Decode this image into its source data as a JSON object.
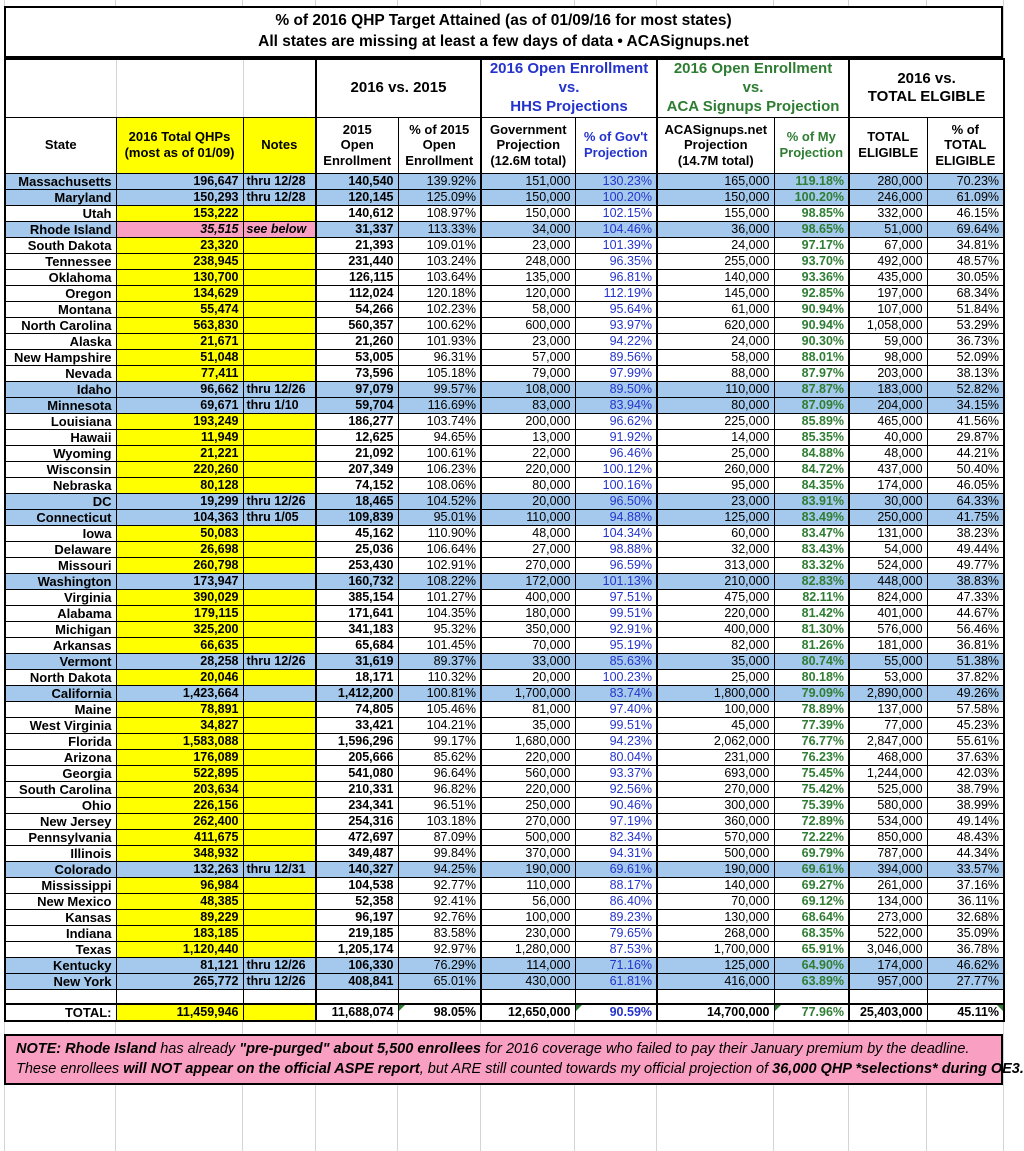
{
  "title": {
    "line1": "% of 2016 QHP Target Attained (as of 01/09/16 for most states)",
    "line2": "All states are missing at least a few days of data • ACASignups.net"
  },
  "group_headers": {
    "vs2015": "2016 vs. 2015",
    "hhs": "2016 Open Enrollment\nvs.\nHHS Projections",
    "aca": "2016 Open Enrollment\nvs.\nACA Signups Projection",
    "eligible": "2016 vs.\nTOTAL ELGIBLE"
  },
  "column_headers": {
    "state": "State",
    "qhps": "2016 Total QHPs\n(most as of 01/09)",
    "notes": "Notes",
    "oe2015": "2015\nOpen\nEnrollment",
    "pct2015": "% of 2015\nOpen\nEnrollment",
    "gov": "Government\nProjection\n(12.6M total)",
    "pctgov": "% of Gov't\nProjection",
    "aca": "ACASignups.net\nProjection\n(14.7M total)",
    "pctmy": "% of My\nProjection",
    "eligible": "TOTAL\nELIGIBLE",
    "pctelig": "% of\nTOTAL\nELIGIBLE"
  },
  "rows": [
    [
      "Massachusetts",
      "196,647",
      "thru 12/28",
      "140,540",
      "139.92%",
      "151,000",
      "130.23%",
      "165,000",
      "119.18%",
      "280,000",
      "70.23%",
      "blue"
    ],
    [
      "Maryland",
      "150,293",
      "thru 12/28",
      "120,145",
      "125.09%",
      "150,000",
      "100.20%",
      "150,000",
      "100.20%",
      "246,000",
      "61.09%",
      "blue"
    ],
    [
      "Utah",
      "153,222",
      "",
      "140,612",
      "108.97%",
      "150,000",
      "102.15%",
      "155,000",
      "98.85%",
      "332,000",
      "46.15%",
      "white"
    ],
    [
      "Rhode Island",
      "35,515",
      "see below",
      "31,337",
      "113.33%",
      "34,000",
      "104.46%",
      "36,000",
      "98.65%",
      "51,000",
      "69.64%",
      "ri"
    ],
    [
      "South Dakota",
      "23,320",
      "",
      "21,393",
      "109.01%",
      "23,000",
      "101.39%",
      "24,000",
      "97.17%",
      "67,000",
      "34.81%",
      "white"
    ],
    [
      "Tennessee",
      "238,945",
      "",
      "231,440",
      "103.24%",
      "248,000",
      "96.35%",
      "255,000",
      "93.70%",
      "492,000",
      "48.57%",
      "white"
    ],
    [
      "Oklahoma",
      "130,700",
      "",
      "126,115",
      "103.64%",
      "135,000",
      "96.81%",
      "140,000",
      "93.36%",
      "435,000",
      "30.05%",
      "white"
    ],
    [
      "Oregon",
      "134,629",
      "",
      "112,024",
      "120.18%",
      "120,000",
      "112.19%",
      "145,000",
      "92.85%",
      "197,000",
      "68.34%",
      "white"
    ],
    [
      "Montana",
      "55,474",
      "",
      "54,266",
      "102.23%",
      "58,000",
      "95.64%",
      "61,000",
      "90.94%",
      "107,000",
      "51.84%",
      "white"
    ],
    [
      "North Carolina",
      "563,830",
      "",
      "560,357",
      "100.62%",
      "600,000",
      "93.97%",
      "620,000",
      "90.94%",
      "1,058,000",
      "53.29%",
      "white"
    ],
    [
      "Alaska",
      "21,671",
      "",
      "21,260",
      "101.93%",
      "23,000",
      "94.22%",
      "24,000",
      "90.30%",
      "59,000",
      "36.73%",
      "white"
    ],
    [
      "New Hampshire",
      "51,048",
      "",
      "53,005",
      "96.31%",
      "57,000",
      "89.56%",
      "58,000",
      "88.01%",
      "98,000",
      "52.09%",
      "white"
    ],
    [
      "Nevada",
      "77,411",
      "",
      "73,596",
      "105.18%",
      "79,000",
      "97.99%",
      "88,000",
      "87.97%",
      "203,000",
      "38.13%",
      "white"
    ],
    [
      "Idaho",
      "96,662",
      "thru 12/26",
      "97,079",
      "99.57%",
      "108,000",
      "89.50%",
      "110,000",
      "87.87%",
      "183,000",
      "52.82%",
      "blue"
    ],
    [
      "Minnesota",
      "69,671",
      "thru 1/10",
      "59,704",
      "116.69%",
      "83,000",
      "83.94%",
      "80,000",
      "87.09%",
      "204,000",
      "34.15%",
      "blue"
    ],
    [
      "Louisiana",
      "193,249",
      "",
      "186,277",
      "103.74%",
      "200,000",
      "96.62%",
      "225,000",
      "85.89%",
      "465,000",
      "41.56%",
      "white"
    ],
    [
      "Hawaii",
      "11,949",
      "",
      "12,625",
      "94.65%",
      "13,000",
      "91.92%",
      "14,000",
      "85.35%",
      "40,000",
      "29.87%",
      "white"
    ],
    [
      "Wyoming",
      "21,221",
      "",
      "21,092",
      "100.61%",
      "22,000",
      "96.46%",
      "25,000",
      "84.88%",
      "48,000",
      "44.21%",
      "white"
    ],
    [
      "Wisconsin",
      "220,260",
      "",
      "207,349",
      "106.23%",
      "220,000",
      "100.12%",
      "260,000",
      "84.72%",
      "437,000",
      "50.40%",
      "white"
    ],
    [
      "Nebraska",
      "80,128",
      "",
      "74,152",
      "108.06%",
      "80,000",
      "100.16%",
      "95,000",
      "84.35%",
      "174,000",
      "46.05%",
      "white"
    ],
    [
      "DC",
      "19,299",
      "thru 12/26",
      "18,465",
      "104.52%",
      "20,000",
      "96.50%",
      "23,000",
      "83.91%",
      "30,000",
      "64.33%",
      "blue"
    ],
    [
      "Connecticut",
      "104,363",
      "thru 1/05",
      "109,839",
      "95.01%",
      "110,000",
      "94.88%",
      "125,000",
      "83.49%",
      "250,000",
      "41.75%",
      "blue"
    ],
    [
      "Iowa",
      "50,083",
      "",
      "45,162",
      "110.90%",
      "48,000",
      "104.34%",
      "60,000",
      "83.47%",
      "131,000",
      "38.23%",
      "white"
    ],
    [
      "Delaware",
      "26,698",
      "",
      "25,036",
      "106.64%",
      "27,000",
      "98.88%",
      "32,000",
      "83.43%",
      "54,000",
      "49.44%",
      "white"
    ],
    [
      "Missouri",
      "260,798",
      "",
      "253,430",
      "102.91%",
      "270,000",
      "96.59%",
      "313,000",
      "83.32%",
      "524,000",
      "49.77%",
      "white"
    ],
    [
      "Washington",
      "173,947",
      "",
      "160,732",
      "108.22%",
      "172,000",
      "101.13%",
      "210,000",
      "82.83%",
      "448,000",
      "38.83%",
      "blue"
    ],
    [
      "Virginia",
      "390,029",
      "",
      "385,154",
      "101.27%",
      "400,000",
      "97.51%",
      "475,000",
      "82.11%",
      "824,000",
      "47.33%",
      "white"
    ],
    [
      "Alabama",
      "179,115",
      "",
      "171,641",
      "104.35%",
      "180,000",
      "99.51%",
      "220,000",
      "81.42%",
      "401,000",
      "44.67%",
      "white"
    ],
    [
      "Michigan",
      "325,200",
      "",
      "341,183",
      "95.32%",
      "350,000",
      "92.91%",
      "400,000",
      "81.30%",
      "576,000",
      "56.46%",
      "white"
    ],
    [
      "Arkansas",
      "66,635",
      "",
      "65,684",
      "101.45%",
      "70,000",
      "95.19%",
      "82,000",
      "81.26%",
      "181,000",
      "36.81%",
      "white"
    ],
    [
      "Vermont",
      "28,258",
      "thru 12/26",
      "31,619",
      "89.37%",
      "33,000",
      "85.63%",
      "35,000",
      "80.74%",
      "55,000",
      "51.38%",
      "blue"
    ],
    [
      "North Dakota",
      "20,046",
      "",
      "18,171",
      "110.32%",
      "20,000",
      "100.23%",
      "25,000",
      "80.18%",
      "53,000",
      "37.82%",
      "white"
    ],
    [
      "California",
      "1,423,664",
      "",
      "1,412,200",
      "100.81%",
      "1,700,000",
      "83.74%",
      "1,800,000",
      "79.09%",
      "2,890,000",
      "49.26%",
      "blue"
    ],
    [
      "Maine",
      "78,891",
      "",
      "74,805",
      "105.46%",
      "81,000",
      "97.40%",
      "100,000",
      "78.89%",
      "137,000",
      "57.58%",
      "white"
    ],
    [
      "West Virginia",
      "34,827",
      "",
      "33,421",
      "104.21%",
      "35,000",
      "99.51%",
      "45,000",
      "77.39%",
      "77,000",
      "45.23%",
      "white"
    ],
    [
      "Florida",
      "1,583,088",
      "",
      "1,596,296",
      "99.17%",
      "1,680,000",
      "94.23%",
      "2,062,000",
      "76.77%",
      "2,847,000",
      "55.61%",
      "white"
    ],
    [
      "Arizona",
      "176,089",
      "",
      "205,666",
      "85.62%",
      "220,000",
      "80.04%",
      "231,000",
      "76.23%",
      "468,000",
      "37.63%",
      "white"
    ],
    [
      "Georgia",
      "522,895",
      "",
      "541,080",
      "96.64%",
      "560,000",
      "93.37%",
      "693,000",
      "75.45%",
      "1,244,000",
      "42.03%",
      "white"
    ],
    [
      "South Carolina",
      "203,634",
      "",
      "210,331",
      "96.82%",
      "220,000",
      "92.56%",
      "270,000",
      "75.42%",
      "525,000",
      "38.79%",
      "white"
    ],
    [
      "Ohio",
      "226,156",
      "",
      "234,341",
      "96.51%",
      "250,000",
      "90.46%",
      "300,000",
      "75.39%",
      "580,000",
      "38.99%",
      "white"
    ],
    [
      "New Jersey",
      "262,400",
      "",
      "254,316",
      "103.18%",
      "270,000",
      "97.19%",
      "360,000",
      "72.89%",
      "534,000",
      "49.14%",
      "white"
    ],
    [
      "Pennsylvania",
      "411,675",
      "",
      "472,697",
      "87.09%",
      "500,000",
      "82.34%",
      "570,000",
      "72.22%",
      "850,000",
      "48.43%",
      "white"
    ],
    [
      "Illinois",
      "348,932",
      "",
      "349,487",
      "99.84%",
      "370,000",
      "94.31%",
      "500,000",
      "69.79%",
      "787,000",
      "44.34%",
      "white"
    ],
    [
      "Colorado",
      "132,263",
      "thru 12/31",
      "140,327",
      "94.25%",
      "190,000",
      "69.61%",
      "190,000",
      "69.61%",
      "394,000",
      "33.57%",
      "blue"
    ],
    [
      "Mississippi",
      "96,984",
      "",
      "104,538",
      "92.77%",
      "110,000",
      "88.17%",
      "140,000",
      "69.27%",
      "261,000",
      "37.16%",
      "white"
    ],
    [
      "New Mexico",
      "48,385",
      "",
      "52,358",
      "92.41%",
      "56,000",
      "86.40%",
      "70,000",
      "69.12%",
      "134,000",
      "36.11%",
      "white"
    ],
    [
      "Kansas",
      "89,229",
      "",
      "96,197",
      "92.76%",
      "100,000",
      "89.23%",
      "130,000",
      "68.64%",
      "273,000",
      "32.68%",
      "white"
    ],
    [
      "Indiana",
      "183,185",
      "",
      "219,185",
      "83.58%",
      "230,000",
      "79.65%",
      "268,000",
      "68.35%",
      "522,000",
      "35.09%",
      "white"
    ],
    [
      "Texas",
      "1,120,440",
      "",
      "1,205,174",
      "92.97%",
      "1,280,000",
      "87.53%",
      "1,700,000",
      "65.91%",
      "3,046,000",
      "36.78%",
      "white"
    ],
    [
      "Kentucky",
      "81,121",
      "thru 12/26",
      "106,330",
      "76.29%",
      "114,000",
      "71.16%",
      "125,000",
      "64.90%",
      "174,000",
      "46.62%",
      "blue"
    ],
    [
      "New York",
      "265,772",
      "thru 12/26",
      "408,841",
      "65.01%",
      "430,000",
      "61.81%",
      "416,000",
      "63.89%",
      "957,000",
      "27.77%",
      "blue"
    ]
  ],
  "total": {
    "label": "TOTAL:",
    "qhps": "11,459,946",
    "notes": "",
    "oe2015": "11,688,074",
    "pct2015": "98.05%",
    "gov": "12,650,000",
    "pctgov": "90.59%",
    "aca": "14,700,000",
    "pctmy": "77.96%",
    "eligible": "25,403,000",
    "pctelig": "45.11%"
  },
  "note": {
    "line1": [
      {
        "text": "NOTE: Rhode Island",
        "bold": true
      },
      {
        "text": " has already ",
        "bold": false
      },
      {
        "text": "\"pre-purged\" about 5,500 enrollees",
        "bold": true
      },
      {
        "text": " for 2016 coverage who failed to pay their January premium by the deadline.",
        "bold": false
      }
    ],
    "line2": [
      {
        "text": "These enrollees ",
        "bold": false
      },
      {
        "text": "will NOT appear on the official ASPE report",
        "bold": true
      },
      {
        "text": ", but ARE still counted towards my official projection of ",
        "bold": false
      },
      {
        "text": "36,000 QHP *selections* during OE3.",
        "bold": true
      }
    ]
  },
  "colors": {
    "yellow": "#ffff00",
    "blue_row": "#a5c9ed",
    "pink": "#f9a0c2",
    "blue_text": "#2433cc",
    "green_text": "#2e7d32"
  }
}
